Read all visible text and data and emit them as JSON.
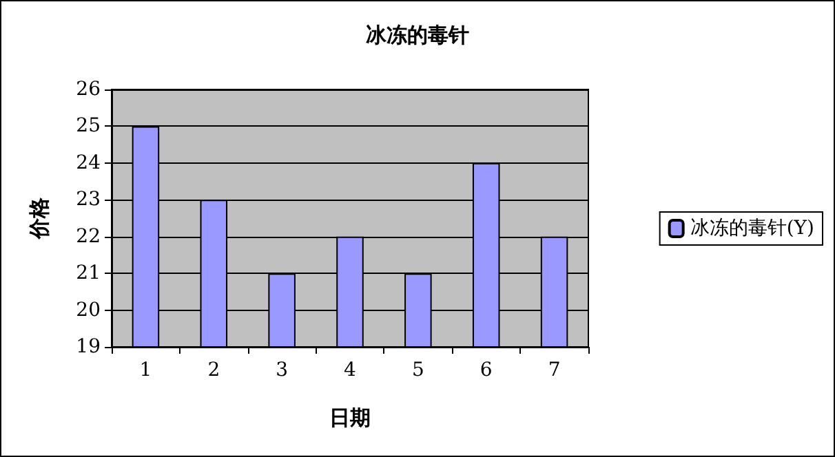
{
  "chart_data": {
    "type": "bar",
    "title": "冰冻的毒针",
    "xlabel": "日期",
    "ylabel": "价格",
    "categories": [
      "1",
      "2",
      "3",
      "4",
      "5",
      "6",
      "7"
    ],
    "series": [
      {
        "name": "冰冻的毒针(Y)",
        "color": "#9999ff",
        "values": [
          25,
          23,
          21,
          22,
          21,
          24,
          22
        ]
      }
    ],
    "ylim": [
      19,
      26
    ],
    "yticks": [
      19,
      20,
      21,
      22,
      23,
      24,
      25,
      26
    ],
    "grid": "y",
    "legend": "right"
  }
}
